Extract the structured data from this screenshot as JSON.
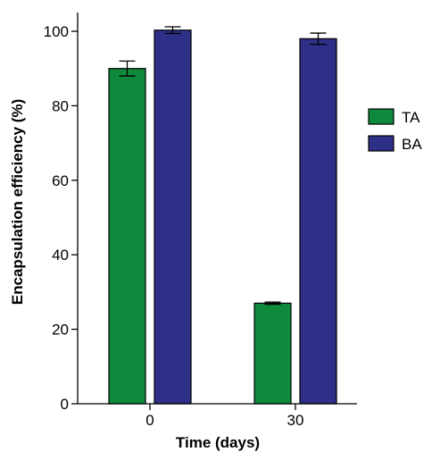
{
  "chart_data": {
    "type": "bar",
    "xlabel": "Time (days)",
    "ylabel": "Encapsulation efficiency (%)",
    "ylim": [
      0,
      100
    ],
    "yticks": [
      0,
      20,
      40,
      60,
      80,
      100
    ],
    "categories": [
      "0",
      "30"
    ],
    "series": [
      {
        "name": "TA",
        "color": "#0f8a3c",
        "values": [
          90,
          27
        ],
        "errors": [
          2,
          0.3
        ]
      },
      {
        "name": "BA",
        "color": "#2e2f86",
        "values": [
          100.3,
          98
        ],
        "errors": [
          0.9,
          1.5
        ]
      }
    ],
    "legend": "right",
    "grid": false
  }
}
